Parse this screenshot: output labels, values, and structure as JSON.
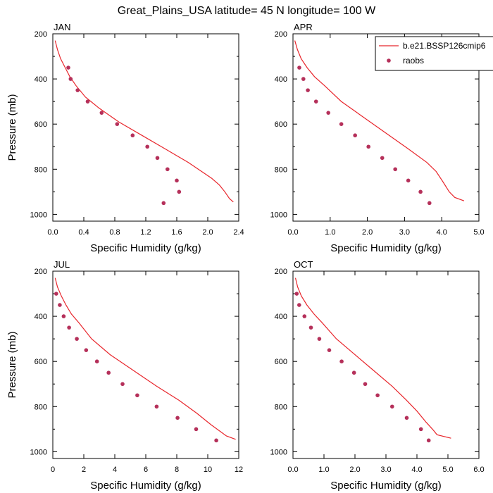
{
  "title": "Great_Plains_USA  latitude= 45 N longitude= 100 W",
  "colors": {
    "model": "#e8262c",
    "obs": "#b5305a"
  },
  "legend": {
    "model_label": "b.e21.BSSP126cmip6",
    "obs_label": "raobs",
    "placement": "top-right"
  },
  "chart_data": [
    {
      "type": "line",
      "title": "JAN",
      "xlabel": "Specific Humidity (g/kg)",
      "ylabel": "Pressure (mb)",
      "xlim": [
        0,
        2.4
      ],
      "ylim": [
        1030,
        200
      ],
      "y_inverted": true,
      "xticks": [
        "0.0",
        "0.4",
        "0.8",
        "1.2",
        "1.6",
        "2.0",
        "2.4"
      ],
      "yticks": [
        "200",
        "400",
        "600",
        "800",
        "1000"
      ],
      "series": [
        {
          "name": "b.e21.BSSP126cmip6",
          "kind": "line",
          "x": [
            0.03,
            0.06,
            0.1,
            0.16,
            0.22,
            0.3,
            0.42,
            0.6,
            0.85,
            1.15,
            1.45,
            1.75,
            2.05,
            2.15,
            2.22,
            2.28,
            2.33
          ],
          "y": [
            230,
            270,
            310,
            350,
            390,
            430,
            480,
            530,
            590,
            650,
            710,
            770,
            840,
            870,
            900,
            930,
            945
          ]
        },
        {
          "name": "raobs",
          "kind": "scatter",
          "x": [
            0.2,
            0.23,
            0.32,
            0.45,
            0.63,
            0.83,
            1.03,
            1.22,
            1.35,
            1.48,
            1.6,
            1.63,
            1.43
          ],
          "y": [
            350,
            400,
            450,
            500,
            550,
            600,
            650,
            700,
            750,
            800,
            850,
            900,
            950
          ]
        }
      ]
    },
    {
      "type": "line",
      "title": "APR",
      "xlabel": "Specific Humidity (g/kg)",
      "ylabel": "",
      "xlim": [
        0,
        5.0
      ],
      "ylim": [
        1030,
        200
      ],
      "y_inverted": true,
      "xticks": [
        "0.0",
        "1.0",
        "2.0",
        "3.0",
        "4.0",
        "5.0"
      ],
      "yticks": [
        "200",
        "400",
        "600",
        "800",
        "1000"
      ],
      "series": [
        {
          "name": "b.e21.BSSP126cmip6",
          "kind": "line",
          "x": [
            0.05,
            0.12,
            0.22,
            0.38,
            0.58,
            0.85,
            1.3,
            1.9,
            2.5,
            3.1,
            3.6,
            3.85,
            4.05,
            4.2,
            4.35,
            4.6
          ],
          "y": [
            230,
            270,
            310,
            350,
            390,
            430,
            500,
            570,
            640,
            710,
            770,
            810,
            860,
            900,
            925,
            940
          ]
        },
        {
          "name": "raobs",
          "kind": "scatter",
          "x": [
            0.17,
            0.28,
            0.4,
            0.62,
            0.95,
            1.3,
            1.67,
            2.03,
            2.4,
            2.75,
            3.1,
            3.43,
            3.67
          ],
          "y": [
            350,
            400,
            450,
            500,
            550,
            600,
            650,
            700,
            750,
            800,
            850,
            900,
            950
          ]
        }
      ]
    },
    {
      "type": "line",
      "title": "JUL",
      "xlabel": "Specific Humidity (g/kg)",
      "ylabel": "Pressure (mb)",
      "xlim": [
        0,
        12
      ],
      "ylim": [
        1030,
        200
      ],
      "y_inverted": true,
      "xticks": [
        "0",
        "2",
        "4",
        "6",
        "8",
        "10",
        "12"
      ],
      "yticks": [
        "200",
        "400",
        "600",
        "800",
        "1000"
      ],
      "series": [
        {
          "name": "b.e21.BSSP126cmip6",
          "kind": "line",
          "x": [
            0.15,
            0.3,
            0.55,
            0.85,
            1.2,
            1.7,
            2.5,
            3.7,
            5.2,
            6.7,
            8.1,
            9.3,
            10.2,
            10.8,
            11.2,
            11.8
          ],
          "y": [
            230,
            270,
            310,
            350,
            390,
            430,
            500,
            570,
            640,
            710,
            770,
            830,
            880,
            910,
            930,
            945
          ]
        },
        {
          "name": "raobs",
          "kind": "scatter",
          "x": [
            0.22,
            0.45,
            0.7,
            1.05,
            1.55,
            2.15,
            2.85,
            3.6,
            4.5,
            5.45,
            6.7,
            8.05,
            9.25,
            10.55
          ],
          "y": [
            300,
            350,
            400,
            450,
            500,
            550,
            600,
            650,
            700,
            750,
            800,
            850,
            900,
            950
          ]
        }
      ]
    },
    {
      "type": "line",
      "title": "OCT",
      "xlabel": "Specific Humidity (g/kg)",
      "ylabel": "",
      "xlim": [
        0,
        6.0
      ],
      "ylim": [
        1030,
        200
      ],
      "y_inverted": true,
      "xticks": [
        "0.0",
        "1.0",
        "2.0",
        "3.0",
        "4.0",
        "5.0",
        "6.0"
      ],
      "yticks": [
        "200",
        "400",
        "600",
        "800",
        "1000"
      ],
      "series": [
        {
          "name": "b.e21.BSSP126cmip6",
          "kind": "line",
          "x": [
            0.08,
            0.15,
            0.27,
            0.45,
            0.68,
            0.95,
            1.4,
            2.0,
            2.6,
            3.2,
            3.65,
            4.0,
            4.3,
            4.5,
            4.65,
            5.1
          ],
          "y": [
            230,
            270,
            310,
            350,
            390,
            430,
            500,
            570,
            640,
            710,
            770,
            820,
            870,
            900,
            925,
            940
          ]
        },
        {
          "name": "raobs",
          "kind": "scatter",
          "x": [
            0.12,
            0.2,
            0.37,
            0.58,
            0.85,
            1.17,
            1.57,
            1.97,
            2.33,
            2.73,
            3.2,
            3.67,
            4.13,
            4.38
          ],
          "y": [
            300,
            350,
            400,
            450,
            500,
            550,
            600,
            650,
            700,
            750,
            800,
            850,
            900,
            950
          ]
        }
      ]
    }
  ]
}
